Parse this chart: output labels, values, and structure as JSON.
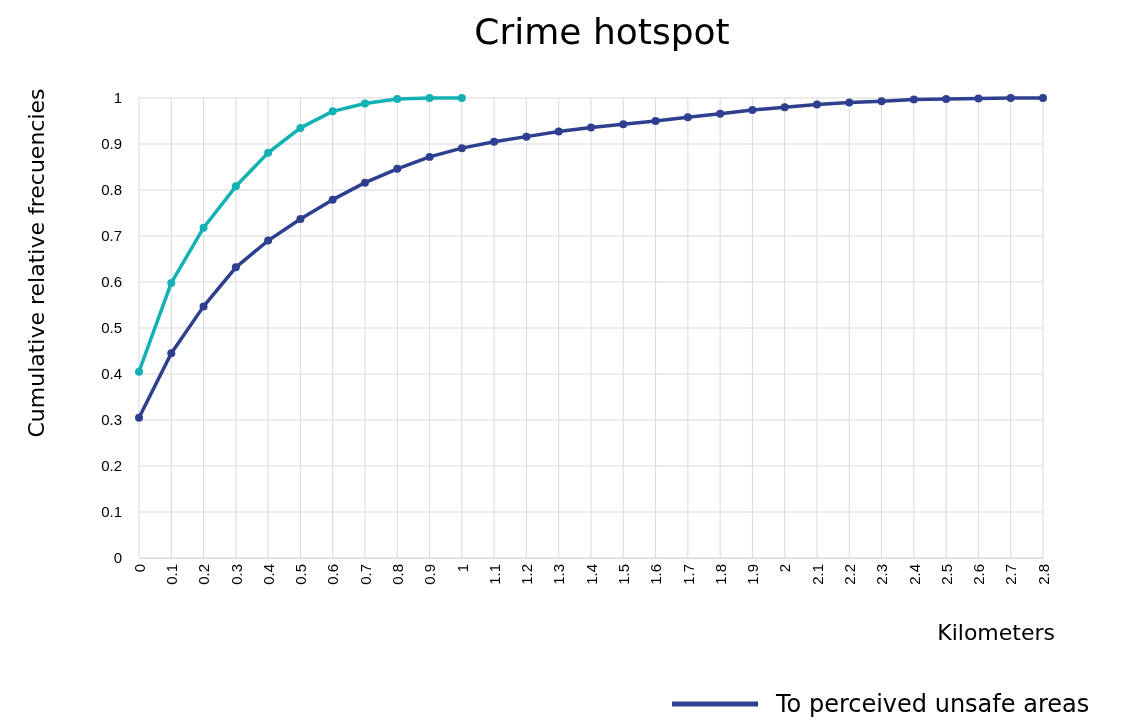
{
  "chart_data": {
    "type": "line",
    "title": "Crime hotspot",
    "xlabel": "Kilometers",
    "ylabel": "Cumulative relative frecuencies",
    "categories": [
      "0",
      "0.1",
      "0.2",
      "0.3",
      "0.4",
      "0.5",
      "0.6",
      "0.7",
      "0.8",
      "0.9",
      "1",
      "1.1",
      "1.2",
      "1.3",
      "1.4",
      "1.5",
      "1.6",
      "1.7",
      "1.8",
      "1.9",
      "2",
      "2.1",
      "2.2",
      "2.3",
      "2.4",
      "2.5",
      "2.6",
      "2.7",
      "2.8"
    ],
    "series": [
      {
        "color": "#14b1b4",
        "values": [
          0.405,
          0.598,
          0.718,
          0.808,
          0.881,
          0.935,
          0.971,
          0.988,
          0.998,
          1,
          1,
          null,
          null,
          null,
          null,
          null,
          null,
          null,
          null,
          null,
          null,
          null,
          null,
          null,
          null,
          null,
          null,
          null,
          null
        ]
      },
      {
        "name": "To perceived unsafe areas",
        "color": "#2e3f8f",
        "values": [
          0.305,
          0.445,
          0.547,
          0.632,
          0.69,
          0.737,
          0.779,
          0.816,
          0.846,
          0.872,
          0.891,
          0.905,
          0.916,
          0.927,
          0.936,
          0.943,
          0.95,
          0.958,
          0.966,
          0.974,
          0.98,
          0.986,
          0.99,
          0.993,
          0.997,
          0.998,
          0.999,
          1,
          1
        ]
      }
    ],
    "ylim": [
      0,
      1
    ],
    "yticks": [
      0,
      0.1,
      0.2,
      0.3,
      0.4,
      0.5,
      0.6,
      0.7,
      0.8,
      0.9,
      1
    ],
    "grid": true,
    "legend": "bottom right",
    "marker": "circle",
    "line_style": "solid"
  }
}
